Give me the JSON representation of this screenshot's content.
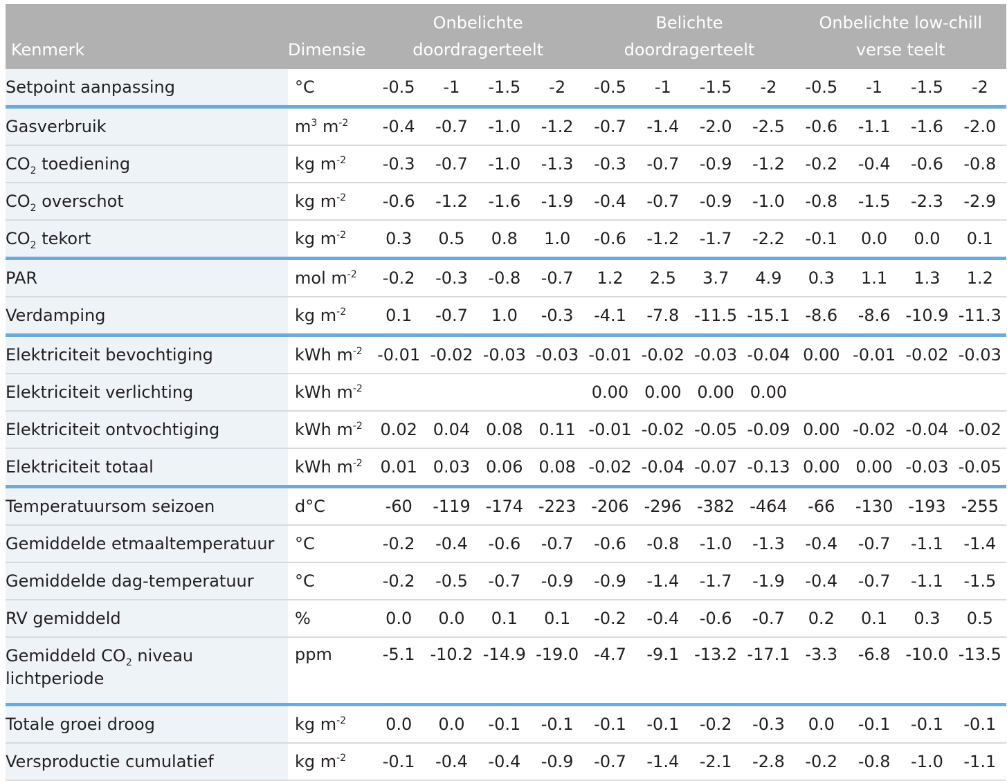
{
  "header": {
    "col_kenmerk": "Kenmerk",
    "col_dimensie": "Dimensie",
    "groups": [
      {
        "line1": "Onbelichte",
        "line2": "doordragerteelt"
      },
      {
        "line1": "Belichte",
        "line2": "doordragerteelt"
      },
      {
        "line1": "Onbelichte low-chill",
        "line2": "verse teelt"
      }
    ]
  },
  "rows": [
    {
      "name_pre": "Setpoint aanpassing",
      "name_sub": "",
      "name_post": "",
      "dim_base": "°C",
      "dim_sup": "",
      "dim_mid": "",
      "dim_sup2": "",
      "values": [
        "-0.5",
        "-1",
        "-1.5",
        "-2",
        "-0.5",
        "-1",
        "-1.5",
        "-2",
        "-0.5",
        "-1",
        "-1.5",
        "-2"
      ]
    },
    {
      "name_pre": "Gasverbruik",
      "name_sub": "",
      "name_post": "",
      "dim_base": "m",
      "dim_sup": "3",
      "dim_mid": " m",
      "dim_sup2": "-2",
      "values": [
        "-0.4",
        "-0.7",
        "-1.0",
        "-1.2",
        "-0.7",
        "-1.4",
        "-2.0",
        "-2.5",
        "-0.6",
        "-1.1",
        "-1.6",
        "-2.0"
      ]
    },
    {
      "name_pre": "CO",
      "name_sub": "2",
      "name_post": " toediening",
      "dim_base": "kg m",
      "dim_sup": "-2",
      "dim_mid": "",
      "dim_sup2": "",
      "values": [
        "-0.3",
        "-0.7",
        "-1.0",
        "-1.3",
        "-0.3",
        "-0.7",
        "-0.9",
        "-1.2",
        "-0.2",
        "-0.4",
        "-0.6",
        "-0.8"
      ]
    },
    {
      "name_pre": "CO",
      "name_sub": "2",
      "name_post": " overschot",
      "dim_base": "kg m",
      "dim_sup": "-2",
      "dim_mid": "",
      "dim_sup2": "",
      "values": [
        "-0.6",
        "-1.2",
        "-1.6",
        "-1.9",
        "-0.4",
        "-0.7",
        "-0.9",
        "-1.0",
        "-0.8",
        "-1.5",
        "-2.3",
        "-2.9"
      ]
    },
    {
      "name_pre": "CO",
      "name_sub": "2",
      "name_post": " tekort",
      "dim_base": "kg m",
      "dim_sup": "-2",
      "dim_mid": "",
      "dim_sup2": "",
      "values": [
        "0.3",
        "0.5",
        "0.8",
        "1.0",
        "-0.6",
        "-1.2",
        "-1.7",
        "-2.2",
        "-0.1",
        "0.0",
        "0.0",
        "0.1"
      ]
    },
    {
      "name_pre": "PAR",
      "name_sub": "",
      "name_post": "",
      "dim_base": "mol m",
      "dim_sup": "-2",
      "dim_mid": "",
      "dim_sup2": "",
      "values": [
        "-0.2",
        "-0.3",
        "-0.8",
        "-0.7",
        "1.2",
        "2.5",
        "3.7",
        "4.9",
        "0.3",
        "1.1",
        "1.3",
        "1.2"
      ]
    },
    {
      "name_pre": "Verdamping",
      "name_sub": "",
      "name_post": "",
      "dim_base": "kg m",
      "dim_sup": "-2",
      "dim_mid": "",
      "dim_sup2": "",
      "values": [
        "0.1",
        "-0.7",
        "1.0",
        "-0.3",
        "-4.1",
        "-7.8",
        "-11.5",
        "-15.1",
        "-8.6",
        "-8.6",
        "-10.9",
        "-11.3"
      ]
    },
    {
      "name_pre": "Elektriciteit bevochtiging",
      "name_sub": "",
      "name_post": "",
      "dim_base": "kWh m",
      "dim_sup": "-2",
      "dim_mid": "",
      "dim_sup2": "",
      "values": [
        "-0.01",
        "-0.02",
        "-0.03",
        "-0.03",
        "-0.01",
        "-0.02",
        "-0.03",
        "-0.04",
        "0.00",
        "-0.01",
        "-0.02",
        "-0.03"
      ]
    },
    {
      "name_pre": "Elektriciteit verlichting",
      "name_sub": "",
      "name_post": "",
      "dim_base": "kWh m",
      "dim_sup": "-2",
      "dim_mid": "",
      "dim_sup2": "",
      "values": [
        "",
        "",
        "",
        "",
        "0.00",
        "0.00",
        "0.00",
        "0.00",
        "",
        "",
        "",
        ""
      ]
    },
    {
      "name_pre": "Elektriciteit ontvochtiging",
      "name_sub": "",
      "name_post": "",
      "dim_base": "kWh m",
      "dim_sup": "-2",
      "dim_mid": "",
      "dim_sup2": "",
      "values": [
        "0.02",
        "0.04",
        "0.08",
        "0.11",
        "-0.01",
        "-0.02",
        "-0.05",
        "-0.09",
        "0.00",
        "-0.02",
        "-0.04",
        "-0.02"
      ]
    },
    {
      "name_pre": "Elektriciteit totaal",
      "name_sub": "",
      "name_post": "",
      "dim_base": "kWh m",
      "dim_sup": "-2",
      "dim_mid": "",
      "dim_sup2": "",
      "values": [
        "0.01",
        "0.03",
        "0.06",
        "0.08",
        "-0.02",
        "-0.04",
        "-0.07",
        "-0.13",
        "0.00",
        "0.00",
        "-0.03",
        "-0.05"
      ]
    },
    {
      "name_pre": "Temperatuursom seizoen",
      "name_sub": "",
      "name_post": "",
      "dim_base": "d°C",
      "dim_sup": "",
      "dim_mid": "",
      "dim_sup2": "",
      "values": [
        "-60",
        "-119",
        "-174",
        "-223",
        "-206",
        "-296",
        "-382",
        "-464",
        "-66",
        "-130",
        "-193",
        "-255"
      ]
    },
    {
      "name_pre": "Gemiddelde etmaaltemperatuur",
      "name_sub": "",
      "name_post": "",
      "dim_base": "°C",
      "dim_sup": "",
      "dim_mid": "",
      "dim_sup2": "",
      "values": [
        "-0.2",
        "-0.4",
        "-0.6",
        "-0.7",
        "-0.6",
        "-0.8",
        "-1.0",
        "-1.3",
        "-0.4",
        "-0.7",
        "-1.1",
        "-1.4"
      ]
    },
    {
      "name_pre": "Gemiddelde dag-temperatuur",
      "name_sub": "",
      "name_post": "",
      "dim_base": "°C",
      "dim_sup": "",
      "dim_mid": "",
      "dim_sup2": "",
      "values": [
        "-0.2",
        "-0.5",
        "-0.7",
        "-0.9",
        "-0.9",
        "-1.4",
        "-1.7",
        "-1.9",
        "-0.4",
        "-0.7",
        "-1.1",
        "-1.5"
      ]
    },
    {
      "name_pre": "RV gemiddeld",
      "name_sub": "",
      "name_post": "",
      "dim_base": "%",
      "dim_sup": "",
      "dim_mid": "",
      "dim_sup2": "",
      "values": [
        "0.0",
        "0.0",
        "0.1",
        "0.1",
        "-0.2",
        "-0.4",
        "-0.6",
        "-0.7",
        "0.2",
        "0.1",
        "0.3",
        "0.5"
      ]
    },
    {
      "name_pre": "Gemiddeld CO",
      "name_sub": "2",
      "name_post": " niveau lichtperiode",
      "dim_base": "ppm",
      "dim_sup": "",
      "dim_mid": "",
      "dim_sup2": "",
      "values": [
        "-5.1",
        "-10.2",
        "-14.9",
        "-19.0",
        "-4.7",
        "-9.1",
        "-13.2",
        "-17.1",
        "-3.3",
        "-6.8",
        "-10.0",
        "-13.5"
      ]
    },
    {
      "name_pre": "Totale groei droog",
      "name_sub": "",
      "name_post": "",
      "dim_base": "kg m",
      "dim_sup": "-2",
      "dim_mid": "",
      "dim_sup2": "",
      "values": [
        "0.0",
        "0.0",
        "-0.1",
        "-0.1",
        "-0.1",
        "-0.1",
        "-0.2",
        "-0.3",
        "0.0",
        "-0.1",
        "-0.1",
        "-0.1"
      ]
    },
    {
      "name_pre": "Versproductie cumulatief",
      "name_sub": "",
      "name_post": "",
      "dim_base": "kg m",
      "dim_sup": "-2",
      "dim_mid": "",
      "dim_sup2": "",
      "values": [
        "-0.1",
        "-0.4",
        "-0.4",
        "-0.9",
        "-0.7",
        "-1.4",
        "-2.1",
        "-2.8",
        "-0.2",
        "-0.8",
        "-1.0",
        "-1.1"
      ]
    }
  ]
}
